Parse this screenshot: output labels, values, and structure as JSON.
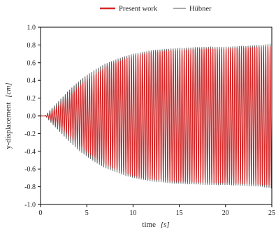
{
  "chart_data": {
    "type": "line",
    "title": "",
    "xlabel": "time",
    "xlabel_unit": "[s]",
    "ylabel": "y-displacement",
    "ylabel_unit": "[cm]",
    "xlim": [
      0,
      25
    ],
    "ylim": [
      -1.0,
      1.0
    ],
    "x_ticks": [
      0,
      5,
      10,
      15,
      20,
      25
    ],
    "x_tick_labels": [
      "0",
      "5",
      "10",
      "15",
      "20",
      "25"
    ],
    "y_ticks": [
      -1.0,
      -0.8,
      -0.6,
      -0.4,
      -0.2,
      0.0,
      0.2,
      0.4,
      0.6,
      0.8,
      1.0
    ],
    "y_tick_labels": [
      "-1.0",
      "-0.8",
      "-0.6",
      "-0.4",
      "-0.2",
      "0.0",
      "0.2",
      "0.4",
      "0.6",
      "0.8",
      "1.0"
    ],
    "grid": false,
    "legend_position": "top-center",
    "series": [
      {
        "name": "Present work",
        "color": "#d62728",
        "line_width": "thick",
        "frequency_hz": 4.2,
        "envelope_t": [
          0,
          0.6,
          1.0,
          2,
          3,
          4,
          5,
          6,
          7,
          8,
          9,
          10,
          11,
          12,
          14,
          16,
          18,
          20,
          22,
          24,
          25
        ],
        "envelope_amplitude": [
          0.0,
          0.0,
          0.03,
          0.12,
          0.22,
          0.32,
          0.41,
          0.48,
          0.55,
          0.6,
          0.64,
          0.68,
          0.7,
          0.72,
          0.74,
          0.75,
          0.76,
          0.76,
          0.77,
          0.78,
          0.79
        ]
      },
      {
        "name": "Hübner",
        "color": "#555555",
        "line_width": "thin",
        "frequency_hz": 4.2,
        "envelope_t": [
          0,
          0.5,
          1.0,
          2,
          3,
          4,
          5,
          6,
          7,
          8,
          9,
          10,
          11,
          12,
          14,
          16,
          18,
          20,
          22,
          24,
          25
        ],
        "envelope_amplitude": [
          0.0,
          0.0,
          0.06,
          0.17,
          0.28,
          0.38,
          0.46,
          0.53,
          0.59,
          0.63,
          0.67,
          0.7,
          0.72,
          0.74,
          0.76,
          0.77,
          0.78,
          0.78,
          0.79,
          0.8,
          0.82
        ]
      }
    ]
  }
}
